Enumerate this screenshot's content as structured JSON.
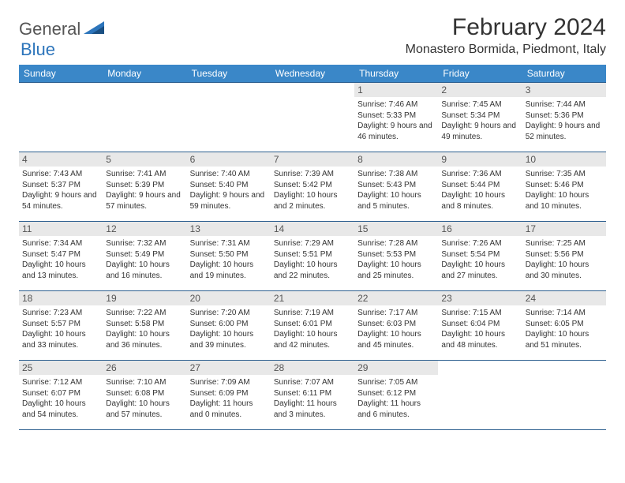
{
  "logo": {
    "text1": "General",
    "text2": "Blue"
  },
  "title": "February 2024",
  "location": "Monastero Bormida, Piedmont, Italy",
  "header_bg": "#3a87c8",
  "header_text_color": "#ffffff",
  "border_color": "#2d5f8f",
  "daynum_bg": "#e8e8e8",
  "weekdays": [
    "Sunday",
    "Monday",
    "Tuesday",
    "Wednesday",
    "Thursday",
    "Friday",
    "Saturday"
  ],
  "first_weekday": 4,
  "days_in_month": 29,
  "days": {
    "1": {
      "sunrise": "7:46 AM",
      "sunset": "5:33 PM",
      "daylight": "9 hours and 46 minutes."
    },
    "2": {
      "sunrise": "7:45 AM",
      "sunset": "5:34 PM",
      "daylight": "9 hours and 49 minutes."
    },
    "3": {
      "sunrise": "7:44 AM",
      "sunset": "5:36 PM",
      "daylight": "9 hours and 52 minutes."
    },
    "4": {
      "sunrise": "7:43 AM",
      "sunset": "5:37 PM",
      "daylight": "9 hours and 54 minutes."
    },
    "5": {
      "sunrise": "7:41 AM",
      "sunset": "5:39 PM",
      "daylight": "9 hours and 57 minutes."
    },
    "6": {
      "sunrise": "7:40 AM",
      "sunset": "5:40 PM",
      "daylight": "9 hours and 59 minutes."
    },
    "7": {
      "sunrise": "7:39 AM",
      "sunset": "5:42 PM",
      "daylight": "10 hours and 2 minutes."
    },
    "8": {
      "sunrise": "7:38 AM",
      "sunset": "5:43 PM",
      "daylight": "10 hours and 5 minutes."
    },
    "9": {
      "sunrise": "7:36 AM",
      "sunset": "5:44 PM",
      "daylight": "10 hours and 8 minutes."
    },
    "10": {
      "sunrise": "7:35 AM",
      "sunset": "5:46 PM",
      "daylight": "10 hours and 10 minutes."
    },
    "11": {
      "sunrise": "7:34 AM",
      "sunset": "5:47 PM",
      "daylight": "10 hours and 13 minutes."
    },
    "12": {
      "sunrise": "7:32 AM",
      "sunset": "5:49 PM",
      "daylight": "10 hours and 16 minutes."
    },
    "13": {
      "sunrise": "7:31 AM",
      "sunset": "5:50 PM",
      "daylight": "10 hours and 19 minutes."
    },
    "14": {
      "sunrise": "7:29 AM",
      "sunset": "5:51 PM",
      "daylight": "10 hours and 22 minutes."
    },
    "15": {
      "sunrise": "7:28 AM",
      "sunset": "5:53 PM",
      "daylight": "10 hours and 25 minutes."
    },
    "16": {
      "sunrise": "7:26 AM",
      "sunset": "5:54 PM",
      "daylight": "10 hours and 27 minutes."
    },
    "17": {
      "sunrise": "7:25 AM",
      "sunset": "5:56 PM",
      "daylight": "10 hours and 30 minutes."
    },
    "18": {
      "sunrise": "7:23 AM",
      "sunset": "5:57 PM",
      "daylight": "10 hours and 33 minutes."
    },
    "19": {
      "sunrise": "7:22 AM",
      "sunset": "5:58 PM",
      "daylight": "10 hours and 36 minutes."
    },
    "20": {
      "sunrise": "7:20 AM",
      "sunset": "6:00 PM",
      "daylight": "10 hours and 39 minutes."
    },
    "21": {
      "sunrise": "7:19 AM",
      "sunset": "6:01 PM",
      "daylight": "10 hours and 42 minutes."
    },
    "22": {
      "sunrise": "7:17 AM",
      "sunset": "6:03 PM",
      "daylight": "10 hours and 45 minutes."
    },
    "23": {
      "sunrise": "7:15 AM",
      "sunset": "6:04 PM",
      "daylight": "10 hours and 48 minutes."
    },
    "24": {
      "sunrise": "7:14 AM",
      "sunset": "6:05 PM",
      "daylight": "10 hours and 51 minutes."
    },
    "25": {
      "sunrise": "7:12 AM",
      "sunset": "6:07 PM",
      "daylight": "10 hours and 54 minutes."
    },
    "26": {
      "sunrise": "7:10 AM",
      "sunset": "6:08 PM",
      "daylight": "10 hours and 57 minutes."
    },
    "27": {
      "sunrise": "7:09 AM",
      "sunset": "6:09 PM",
      "daylight": "11 hours and 0 minutes."
    },
    "28": {
      "sunrise": "7:07 AM",
      "sunset": "6:11 PM",
      "daylight": "11 hours and 3 minutes."
    },
    "29": {
      "sunrise": "7:05 AM",
      "sunset": "6:12 PM",
      "daylight": "11 hours and 6 minutes."
    }
  },
  "labels": {
    "sunrise": "Sunrise:",
    "sunset": "Sunset:",
    "daylight": "Daylight:"
  }
}
